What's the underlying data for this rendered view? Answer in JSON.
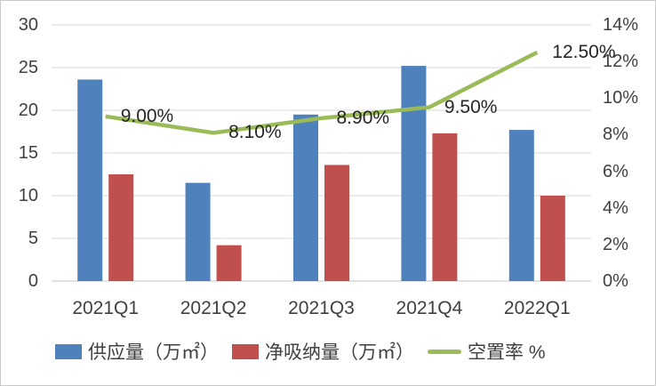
{
  "window": {
    "background": "#ffffff",
    "border_color": "#c9c9c9"
  },
  "chart_data": {
    "type": "bar",
    "overlay": "line",
    "title": "",
    "categories": [
      "2021Q1",
      "2021Q2",
      "2021Q3",
      "2021Q4",
      "2022Q1"
    ],
    "series": [
      {
        "name": "供应量（万㎡）",
        "kind": "bar",
        "axis": "left",
        "color": "#4F81BD",
        "values": [
          23.6,
          11.5,
          19.5,
          25.2,
          17.7
        ]
      },
      {
        "name": "净吸纳量（万㎡）",
        "kind": "bar",
        "axis": "left",
        "color": "#C0504D",
        "values": [
          12.5,
          4.2,
          13.6,
          17.3,
          10.0
        ]
      },
      {
        "name": "空置率 %",
        "kind": "line",
        "axis": "right",
        "color": "#9BBB59",
        "values": [
          9.0,
          8.1,
          8.9,
          9.5,
          12.5
        ],
        "point_labels": [
          "9.00%",
          "8.10%",
          "8.90%",
          "9.50%",
          "12.50%"
        ]
      }
    ],
    "left_axis": {
      "min": 0,
      "max": 30,
      "tick_step": 5,
      "tick_labels": [
        "0",
        "5",
        "10",
        "15",
        "20",
        "25",
        "30"
      ]
    },
    "right_axis": {
      "min": 0,
      "max": 14,
      "tick_step": 2,
      "tick_labels": [
        "0%",
        "2%",
        "4%",
        "6%",
        "8%",
        "10%",
        "12%",
        "14%"
      ]
    },
    "grid": true,
    "legend_position": "bottom",
    "gridline_color": "#D9D9D9",
    "axis_line_color": "#C3C3C3",
    "tick_text_color": "#404040",
    "data_label_color": "#262626"
  }
}
